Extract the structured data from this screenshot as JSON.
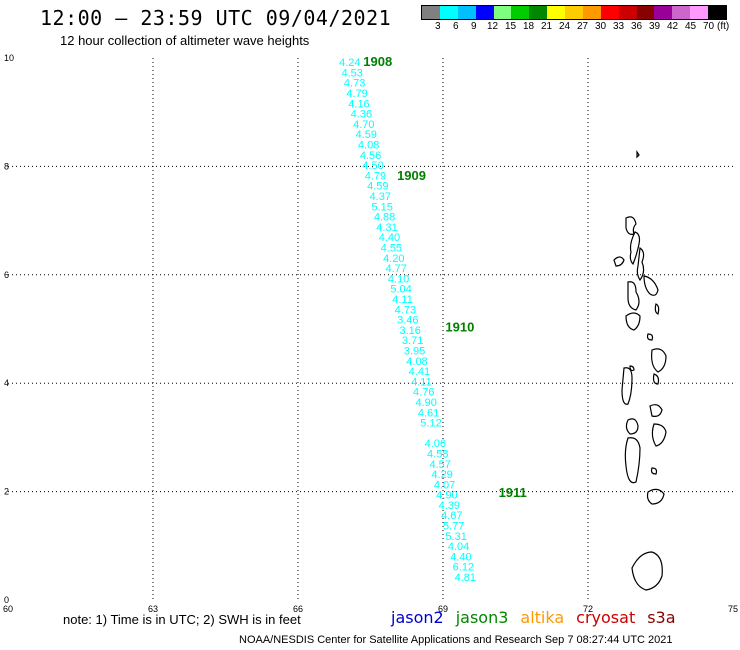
{
  "header": {
    "title": "12:00 – 23:59 UTC 09/04/2021",
    "subtitle": "12 hour collection of altimeter wave heights"
  },
  "legend": {
    "colors": [
      "#808080",
      "#00ffff",
      "#00bfff",
      "#0000ff",
      "#7fff7f",
      "#00cc00",
      "#008800",
      "#ffff00",
      "#ffcc00",
      "#ff9900",
      "#ff0000",
      "#cc0000",
      "#880000",
      "#990099",
      "#cc66cc",
      "#ff99ff",
      "#000000"
    ],
    "labels": [
      "3",
      "6",
      "9",
      "12",
      "15",
      "18",
      "21",
      "24",
      "27",
      "30",
      "33",
      "36",
      "39",
      "42",
      "45",
      "70",
      "(ft)"
    ]
  },
  "map": {
    "x_ticks": [
      "60",
      "63",
      "66",
      "69",
      "72",
      "75"
    ],
    "y_ticks": [
      "0",
      "2",
      "4",
      "6",
      "8",
      "10"
    ],
    "track_color": "#00ffff",
    "time_color": "#008000",
    "wave_heights": [
      {
        "lon": 66.85,
        "lat": 9.85,
        "v": "4.24"
      },
      {
        "lon": 66.9,
        "lat": 9.66,
        "v": "4.53"
      },
      {
        "lon": 66.95,
        "lat": 9.47,
        "v": "4.73"
      },
      {
        "lon": 67.0,
        "lat": 9.28,
        "v": "4.79"
      },
      {
        "lon": 67.04,
        "lat": 9.09,
        "v": "4.16"
      },
      {
        "lon": 67.09,
        "lat": 8.9,
        "v": "4.36"
      },
      {
        "lon": 67.14,
        "lat": 8.71,
        "v": "4.70"
      },
      {
        "lon": 67.19,
        "lat": 8.52,
        "v": "4.59"
      },
      {
        "lon": 67.24,
        "lat": 8.33,
        "v": "4.08"
      },
      {
        "lon": 67.28,
        "lat": 8.14,
        "v": "4.56"
      },
      {
        "lon": 67.33,
        "lat": 7.95,
        "v": "4.50"
      },
      {
        "lon": 67.38,
        "lat": 7.76,
        "v": "4.79"
      },
      {
        "lon": 67.43,
        "lat": 7.57,
        "v": "4.59"
      },
      {
        "lon": 67.48,
        "lat": 7.38,
        "v": "4.37"
      },
      {
        "lon": 67.52,
        "lat": 7.19,
        "v": "5.15"
      },
      {
        "lon": 67.57,
        "lat": 7.0,
        "v": "4.88"
      },
      {
        "lon": 67.62,
        "lat": 6.81,
        "v": "4.31"
      },
      {
        "lon": 67.67,
        "lat": 6.62,
        "v": "4.40"
      },
      {
        "lon": 67.71,
        "lat": 6.43,
        "v": "4.55"
      },
      {
        "lon": 67.76,
        "lat": 6.24,
        "v": "4.20"
      },
      {
        "lon": 67.81,
        "lat": 6.05,
        "v": "4.77"
      },
      {
        "lon": 67.86,
        "lat": 5.86,
        "v": "4.10"
      },
      {
        "lon": 67.91,
        "lat": 5.67,
        "v": "5.04"
      },
      {
        "lon": 67.95,
        "lat": 5.48,
        "v": "4.11"
      },
      {
        "lon": 68.0,
        "lat": 5.29,
        "v": "4.73"
      },
      {
        "lon": 68.05,
        "lat": 5.1,
        "v": "3.46"
      },
      {
        "lon": 68.1,
        "lat": 4.91,
        "v": "3.16"
      },
      {
        "lon": 68.15,
        "lat": 4.72,
        "v": "3.71"
      },
      {
        "lon": 68.19,
        "lat": 4.53,
        "v": "3.95"
      },
      {
        "lon": 68.24,
        "lat": 4.34,
        "v": "4.08"
      },
      {
        "lon": 68.29,
        "lat": 4.15,
        "v": "4.41"
      },
      {
        "lon": 68.34,
        "lat": 3.96,
        "v": "4.11"
      },
      {
        "lon": 68.38,
        "lat": 3.77,
        "v": "4.76"
      },
      {
        "lon": 68.43,
        "lat": 3.58,
        "v": "4.90"
      },
      {
        "lon": 68.48,
        "lat": 3.39,
        "v": "4.61"
      },
      {
        "lon": 68.53,
        "lat": 3.2,
        "v": "5.12"
      },
      {
        "lon": 68.62,
        "lat": 2.82,
        "v": "4.06"
      },
      {
        "lon": 68.67,
        "lat": 2.63,
        "v": "4.58"
      },
      {
        "lon": 68.72,
        "lat": 2.44,
        "v": "4.57"
      },
      {
        "lon": 68.76,
        "lat": 2.25,
        "v": "4.29"
      },
      {
        "lon": 68.81,
        "lat": 2.06,
        "v": "4.07"
      },
      {
        "lon": 68.86,
        "lat": 1.87,
        "v": "4.90"
      },
      {
        "lon": 68.91,
        "lat": 1.68,
        "v": "4.39"
      },
      {
        "lon": 68.96,
        "lat": 1.49,
        "v": "4.67"
      },
      {
        "lon": 69.0,
        "lat": 1.3,
        "v": "5.77"
      },
      {
        "lon": 69.05,
        "lat": 1.11,
        "v": "5.31"
      },
      {
        "lon": 69.1,
        "lat": 0.92,
        "v": "4.04"
      },
      {
        "lon": 69.15,
        "lat": 0.73,
        "v": "4.40"
      },
      {
        "lon": 69.2,
        "lat": 0.54,
        "v": "6.12"
      },
      {
        "lon": 69.24,
        "lat": 0.35,
        "v": "4.81"
      }
    ],
    "time_labels": [
      {
        "lon": 67.35,
        "lat": 9.85,
        "t": "1908"
      },
      {
        "lon": 68.05,
        "lat": 7.75,
        "t": "1909"
      },
      {
        "lon": 69.05,
        "lat": 4.95,
        "t": "1910"
      },
      {
        "lon": 70.15,
        "lat": 1.9,
        "t": "1911"
      }
    ]
  },
  "footer": {
    "note": "note:  1) Time is in UTC;  2) SWH is in feet",
    "credit": "NOAA/NESDIS Center for Satellite Applications and Research    Sep  7 08:27:44 UTC 2021",
    "satellites": [
      {
        "name": "jason2",
        "color": "#0000cc"
      },
      {
        "name": "jason3",
        "color": "#008800"
      },
      {
        "name": "altika",
        "color": "#ff9900"
      },
      {
        "name": "cryosat",
        "color": "#cc0000"
      },
      {
        "name": "s3a",
        "color": "#880000"
      }
    ]
  }
}
